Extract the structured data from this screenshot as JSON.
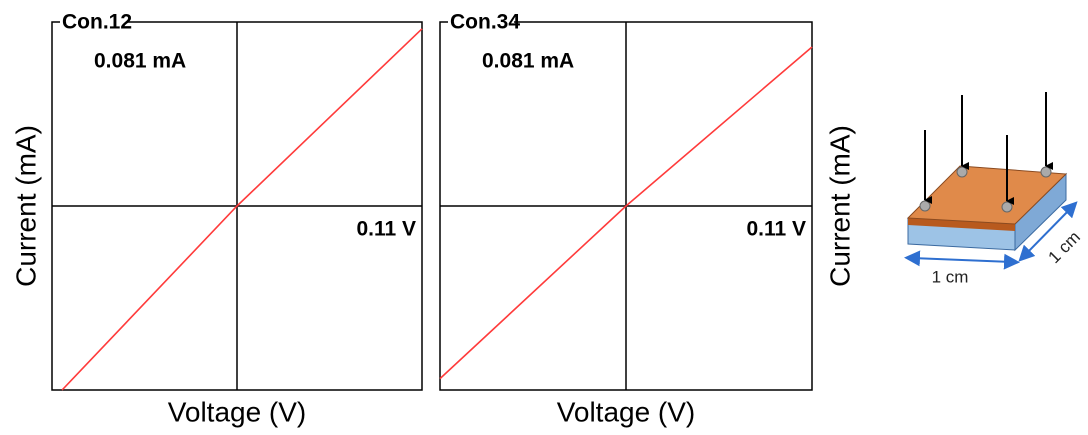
{
  "chart_data": [
    {
      "type": "line",
      "title": "Con.12",
      "x_label": "Voltage (V)",
      "y_label": "Current (mA)",
      "y_label_side": "left",
      "annotations": [
        "0.081 mA",
        "0.11 V"
      ],
      "x": [
        -0.104,
        0,
        0.11
      ],
      "series": [
        {
          "color": "#ff3b3b",
          "values": [
            -0.081,
            0,
            0.078
          ]
        }
      ],
      "xlim": [
        -0.11,
        0.11
      ],
      "ylim": [
        -0.081,
        0.081
      ]
    },
    {
      "type": "line",
      "title": "Con.34",
      "x_label": "Voltage (V)",
      "y_label": "Current (mA)",
      "y_label_side": "right",
      "annotations": [
        "0.081 mA",
        "0.11 V"
      ],
      "x": [
        -0.11,
        0,
        0.11
      ],
      "series": [
        {
          "color": "#ff3b3b",
          "values": [
            -0.076,
            0,
            0.07
          ]
        }
      ],
      "xlim": [
        -0.11,
        0.11
      ],
      "ylim": [
        -0.081,
        0.081
      ]
    }
  ],
  "diagram": {
    "labels": [
      "1 cm",
      "1 cm"
    ]
  }
}
